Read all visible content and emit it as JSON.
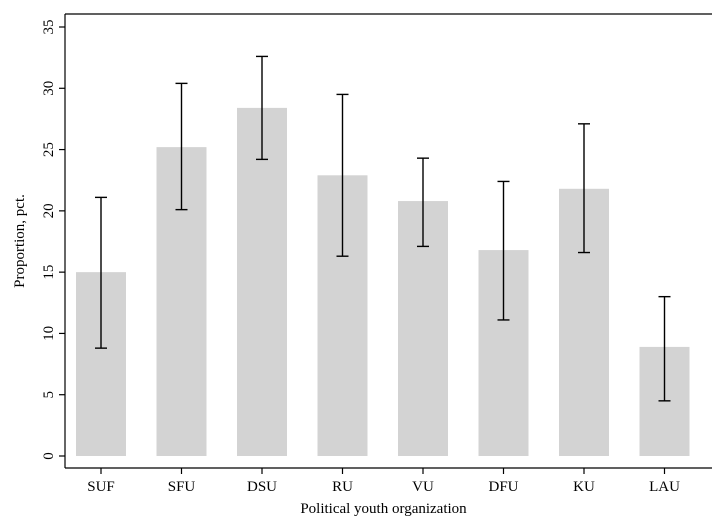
{
  "chart_data": {
    "type": "bar",
    "title": "",
    "xlabel": "Political youth organization",
    "ylabel": "Proportion, pct.",
    "categories": [
      "SUF",
      "SFU",
      "DSU",
      "RU",
      "VU",
      "DFU",
      "KU",
      "LAU"
    ],
    "values": [
      15.0,
      25.2,
      28.4,
      22.9,
      20.8,
      16.8,
      21.8,
      8.9
    ],
    "error_low": [
      8.8,
      20.1,
      24.2,
      16.3,
      17.1,
      11.1,
      16.6,
      4.5
    ],
    "error_high": [
      21.1,
      30.4,
      32.6,
      29.5,
      24.3,
      22.4,
      27.1,
      13.0
    ],
    "ylim": [
      0,
      35
    ],
    "yticks": [
      "0",
      "5",
      "10",
      "15",
      "20",
      "25",
      "30",
      "35"
    ],
    "grid": false,
    "bar_color": "#d3d3d3",
    "error_bar_color": "#000000"
  }
}
